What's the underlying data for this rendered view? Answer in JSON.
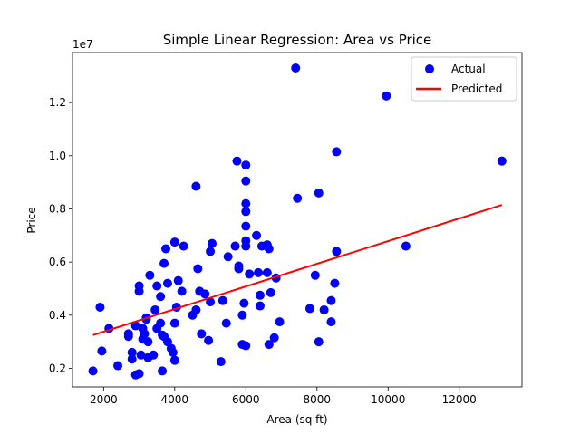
{
  "chart_data": {
    "type": "scatter",
    "title": "Simple Linear Regression: Area vs Price",
    "xlabel": "Area (sq ft)",
    "ylabel": "Price",
    "y_multiplier_label": "1e7",
    "xlim": [
      1125,
      13765
    ],
    "ylim": [
      1.3,
      13.88
    ],
    "y_scale_note": "y values in units of 1e6 (tick labels shown in 1e7)",
    "xticks": [
      {
        "value": 2000,
        "label": "2000"
      },
      {
        "value": 4000,
        "label": "4000"
      },
      {
        "value": 6000,
        "label": "6000"
      },
      {
        "value": 8000,
        "label": "8000"
      },
      {
        "value": 10000,
        "label": "10000"
      },
      {
        "value": 12000,
        "label": "12000"
      }
    ],
    "yticks": [
      {
        "value": 2,
        "label": "0.2"
      },
      {
        "value": 4,
        "label": "0.4"
      },
      {
        "value": 6,
        "label": "0.6"
      },
      {
        "value": 8,
        "label": "0.8"
      },
      {
        "value": 10,
        "label": "1.0"
      },
      {
        "value": 12,
        "label": "1.2"
      }
    ],
    "grid": false,
    "legend_position": "top-right",
    "series": [
      {
        "name": "Actual",
        "kind": "scatter",
        "color": "#0000ff",
        "points": [
          [
            1700,
            1.9
          ],
          [
            1900,
            4.3
          ],
          [
            1950,
            2.65
          ],
          [
            2150,
            3.5
          ],
          [
            2400,
            2.1
          ],
          [
            2700,
            3.2
          ],
          [
            2700,
            3.3
          ],
          [
            2800,
            2.6
          ],
          [
            2800,
            2.35
          ],
          [
            2900,
            3.6
          ],
          [
            2900,
            1.75
          ],
          [
            3000,
            1.8
          ],
          [
            3000,
            4.9
          ],
          [
            3000,
            5.1
          ],
          [
            3050,
            2.5
          ],
          [
            3100,
            3.1
          ],
          [
            3100,
            3.5
          ],
          [
            3150,
            3.3
          ],
          [
            3200,
            3.85
          ],
          [
            3200,
            3.9
          ],
          [
            3250,
            3.0
          ],
          [
            3250,
            2.4
          ],
          [
            3300,
            5.5
          ],
          [
            3400,
            2.5
          ],
          [
            3450,
            4.2
          ],
          [
            3500,
            3.5
          ],
          [
            3500,
            5.1
          ],
          [
            3600,
            4.7
          ],
          [
            3600,
            3.7
          ],
          [
            3650,
            1.9
          ],
          [
            3650,
            3.25
          ],
          [
            3700,
            3.2
          ],
          [
            3700,
            5.95
          ],
          [
            3750,
            6.5
          ],
          [
            3800,
            3.0
          ],
          [
            3800,
            5.2
          ],
          [
            3900,
            2.75
          ],
          [
            3950,
            2.6
          ],
          [
            4000,
            2.3
          ],
          [
            4000,
            6.75
          ],
          [
            4000,
            3.7
          ],
          [
            4050,
            4.3
          ],
          [
            4100,
            5.3
          ],
          [
            4200,
            4.9
          ],
          [
            4250,
            6.6
          ],
          [
            4500,
            4.0
          ],
          [
            4600,
            8.85
          ],
          [
            4600,
            4.2
          ],
          [
            4650,
            5.75
          ],
          [
            4700,
            4.9
          ],
          [
            4750,
            3.3
          ],
          [
            4850,
            4.8
          ],
          [
            4950,
            3.05
          ],
          [
            5000,
            4.5
          ],
          [
            5000,
            6.4
          ],
          [
            5050,
            6.7
          ],
          [
            5300,
            2.25
          ],
          [
            5350,
            4.55
          ],
          [
            5450,
            3.7
          ],
          [
            5500,
            6.2
          ],
          [
            5700,
            6.6
          ],
          [
            5750,
            9.8
          ],
          [
            5800,
            5.75
          ],
          [
            5800,
            5.85
          ],
          [
            5900,
            2.9
          ],
          [
            5900,
            4.0
          ],
          [
            5950,
            4.45
          ],
          [
            6000,
            9.65
          ],
          [
            6000,
            9.05
          ],
          [
            6000,
            8.2
          ],
          [
            6000,
            7.9
          ],
          [
            6000,
            7.35
          ],
          [
            6000,
            6.8
          ],
          [
            6000,
            6.6
          ],
          [
            6000,
            2.85
          ],
          [
            6100,
            5.55
          ],
          [
            6300,
            7.0
          ],
          [
            6350,
            5.6
          ],
          [
            6400,
            4.75
          ],
          [
            6400,
            4.35
          ],
          [
            6450,
            6.6
          ],
          [
            6600,
            6.65
          ],
          [
            6600,
            5.6
          ],
          [
            6650,
            2.9
          ],
          [
            6650,
            6.5
          ],
          [
            6700,
            4.85
          ],
          [
            6800,
            3.15
          ],
          [
            6850,
            5.4
          ],
          [
            6950,
            3.75
          ],
          [
            7400,
            13.3
          ],
          [
            7450,
            8.4
          ],
          [
            7800,
            4.25
          ],
          [
            7950,
            5.5
          ],
          [
            8050,
            8.6
          ],
          [
            8050,
            3.0
          ],
          [
            8200,
            4.2
          ],
          [
            8400,
            3.75
          ],
          [
            8400,
            4.55
          ],
          [
            8500,
            5.2
          ],
          [
            8550,
            6.4
          ],
          [
            8550,
            10.15
          ],
          [
            9950,
            12.25
          ],
          [
            10500,
            6.6
          ],
          [
            13200,
            9.8
          ]
        ]
      },
      {
        "name": "Predicted",
        "kind": "line",
        "color": "#ff0000",
        "points": [
          [
            1700,
            3.25
          ],
          [
            13200,
            8.15
          ]
        ]
      }
    ]
  }
}
